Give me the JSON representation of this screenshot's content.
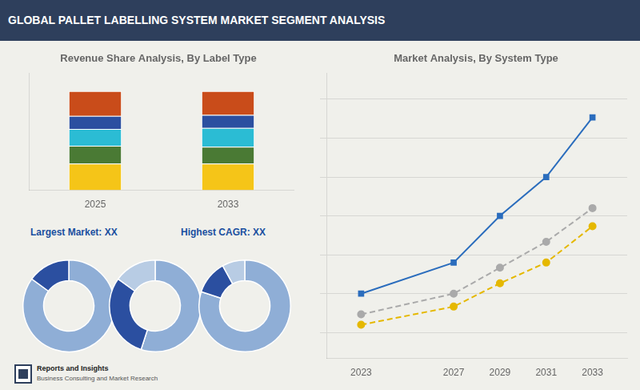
{
  "title": "GLOBAL PALLET LABELLING SYSTEM MARKET SEGMENT ANALYSIS",
  "annotations": [
    "Largest Market: XX",
    "Highest CAGR: XX",
    "Reports and Insights",
    "Business Consulting and Market Research"
  ],
  "chart_data": [
    {
      "type": "bar",
      "title": "Revenue Share Analysis, By Label Type",
      "categories": [
        "2025",
        "2033"
      ],
      "series": [
        {
          "color": "#f5c518",
          "values": [
            0.27,
            0.27
          ]
        },
        {
          "color": "#4a7a34",
          "values": [
            0.18,
            0.17
          ]
        },
        {
          "color": "#2bbcd4",
          "values": [
            0.17,
            0.19
          ]
        },
        {
          "color": "#2b4fa0",
          "values": [
            0.13,
            0.13
          ]
        },
        {
          "color": "#c94c1a",
          "values": [
            0.25,
            0.24
          ]
        }
      ],
      "stacked": true,
      "ylim": [
        0.0,
        1.18
      ],
      "yticks": [],
      "grid": false,
      "tick_labels": "x"
    },
    {
      "type": "line",
      "title": "Market Analysis, By System Type",
      "x": [
        2023,
        2027,
        2029,
        2031,
        2033
      ],
      "series": [
        {
          "color": "#2b6dbd",
          "marker": "square",
          "line_style": "solid",
          "values": [
            3.0,
            4.2,
            6.0,
            7.5,
            9.8
          ]
        },
        {
          "color": "#aaaaaa",
          "marker": "circle",
          "line_style": "dashed",
          "values": [
            2.2,
            3.0,
            4.0,
            5.0,
            6.3
          ]
        },
        {
          "color": "#e5b800",
          "marker": "circle",
          "line_style": "dashed",
          "values": [
            1.8,
            2.5,
            3.4,
            4.2,
            5.6
          ]
        }
      ],
      "xlim": [
        2021.5,
        2034.5
      ],
      "xticks": [
        2023,
        2027,
        2029,
        2031,
        2033
      ],
      "ylim": [
        0.5,
        11.5
      ],
      "yticks": [
        1.5,
        3,
        4.5,
        6,
        7.5,
        9,
        10.5
      ],
      "grid": true,
      "tick_labels": "x"
    },
    {
      "type": "doughnut",
      "values": [
        0.85,
        0.15
      ],
      "colors": [
        "#8faed6",
        "#2b4fa0"
      ]
    },
    {
      "type": "doughnut",
      "values": [
        0.55,
        0.3,
        0.15
      ],
      "colors": [
        "#8faed6",
        "#2b4fa0",
        "#b8cce4"
      ]
    },
    {
      "type": "doughnut",
      "values": [
        0.8,
        0.12,
        0.08
      ],
      "colors": [
        "#8faed6",
        "#2b4fa0",
        "#b8cce4"
      ]
    }
  ]
}
